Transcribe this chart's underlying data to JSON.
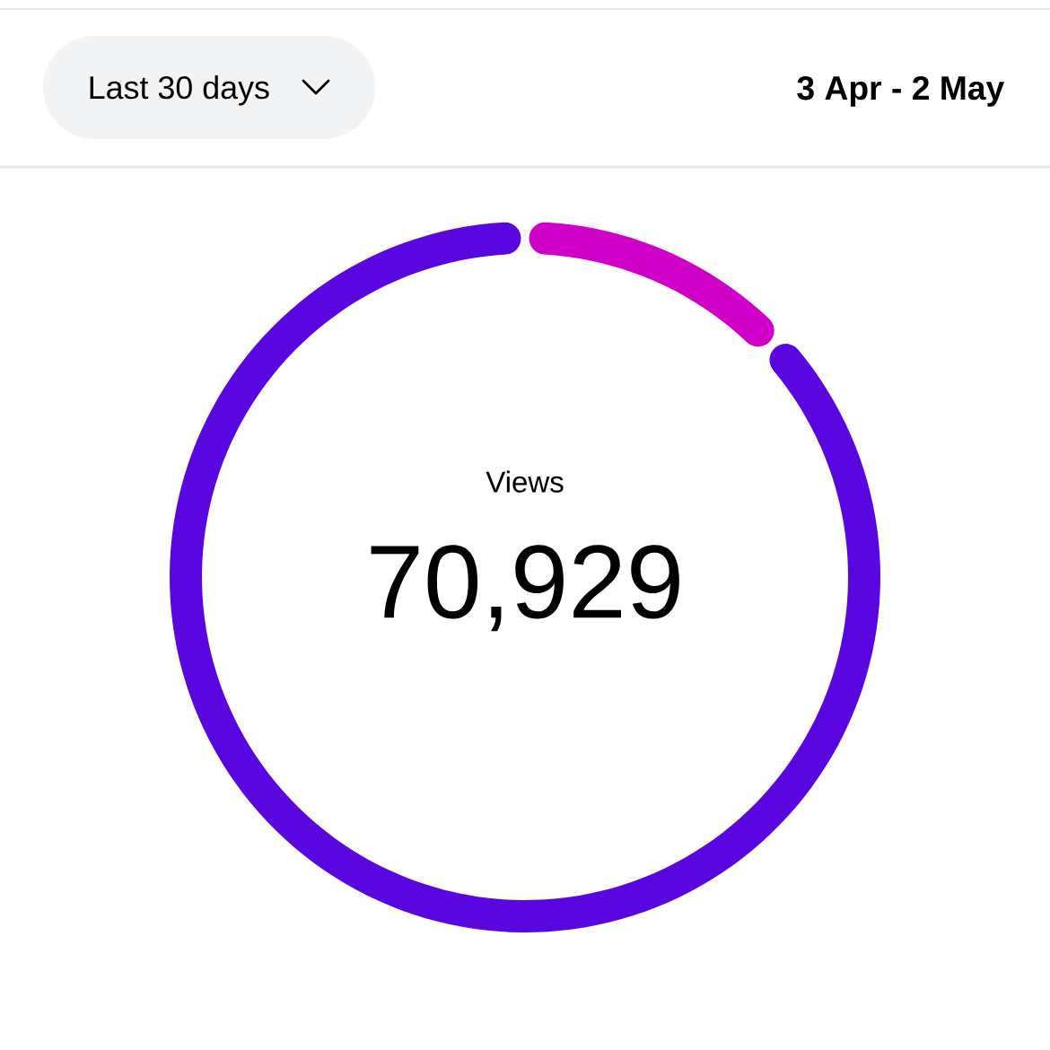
{
  "chart_data": {
    "type": "donut",
    "categories": [
      null,
      null
    ],
    "values": [
      13,
      87
    ],
    "colors": [
      "#d000c8",
      "#5a06e0"
    ],
    "annotations": [
      "Last 30 days",
      "3 Apr - 2 May",
      "Views",
      "70,929"
    ]
  }
}
